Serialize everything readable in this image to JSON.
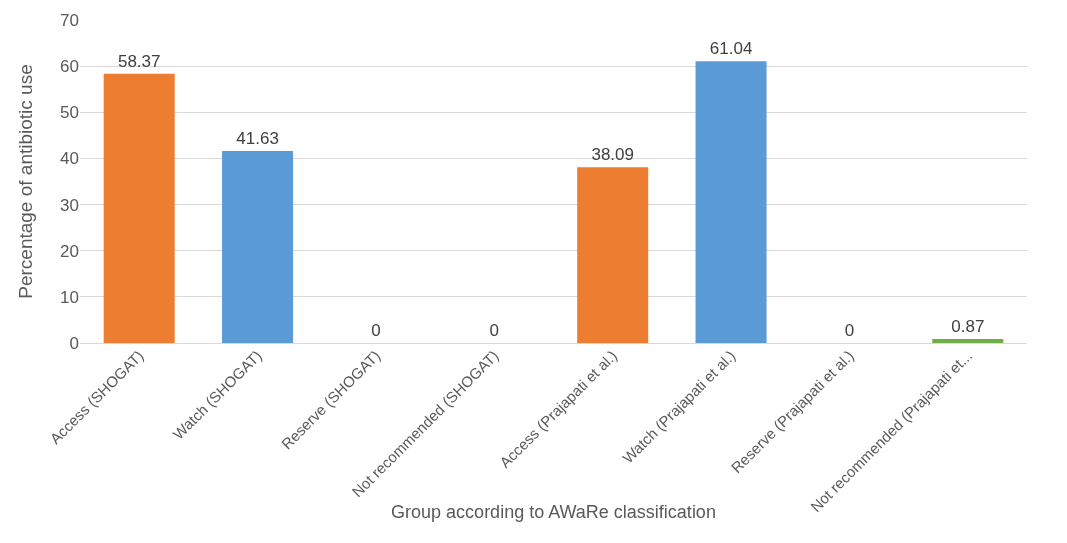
{
  "chart_data": {
    "type": "bar",
    "xlabel": "Group according to AWaRe classification",
    "ylabel": "Percentage of antibiotic use",
    "categories": [
      "Access (SHOGAT)",
      "Watch (SHOGAT)",
      "Reserve (SHOGAT)",
      "Not recommended (SHOGAT)",
      "Access (Prajapati et al.)",
      "Watch (Prajapati et al.)",
      "Reserve (Prajapati et al.)",
      "Not recommended (Prajapati et..."
    ],
    "values": [
      58.37,
      41.63,
      0,
      0,
      38.09,
      61.04,
      0,
      0.87
    ],
    "colors": [
      "#ed7d31",
      "#5b9bd5",
      "#5b9bd5",
      "#5b9bd5",
      "#ed7d31",
      "#5b9bd5",
      "#5b9bd5",
      "#70ad47"
    ],
    "ylim": [
      0,
      70
    ],
    "yticks": [
      0,
      10,
      20,
      30,
      40,
      50,
      60,
      70
    ],
    "grid": "y",
    "data_labels": true
  }
}
